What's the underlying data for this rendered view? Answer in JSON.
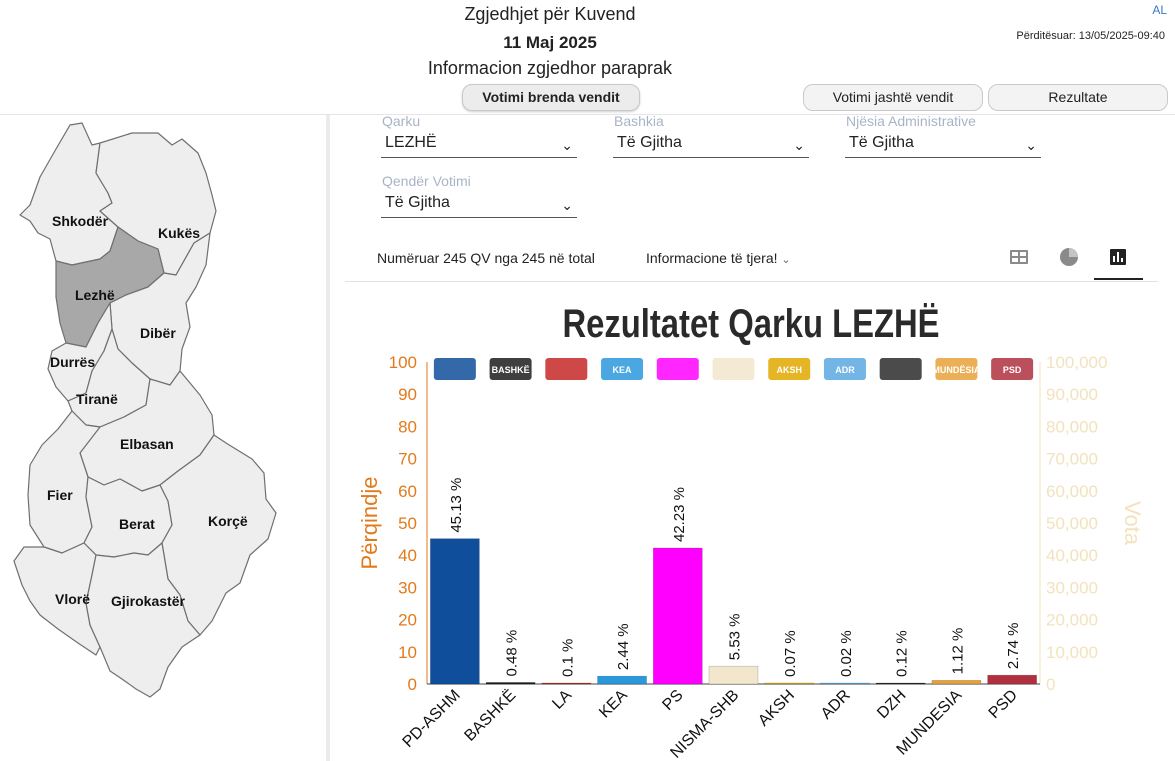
{
  "header": {
    "title": "Zgjedhjet për Kuvend",
    "date": "11 Maj 2025",
    "subtitle": "Informacion zgjedhor paraprak",
    "lang": "AL",
    "updated": "Përditësuar: 13/05/2025-09:40"
  },
  "tabs": {
    "domestic": "Votimi brenda vendit",
    "abroad": "Votimi jashtë vendit",
    "results": "Rezultate"
  },
  "map": {
    "regions": [
      "Shkodër",
      "Kukës",
      "Lezhë",
      "Dibër",
      "Durrës",
      "Tiranë",
      "Elbasan",
      "Fier",
      "Berat",
      "Korçë",
      "Vlorë",
      "Gjirokastër"
    ],
    "selected": "Lezhë",
    "colors": {
      "region": "#eeeeee",
      "selected": "#a8a8a8",
      "border": "#6f6f6f"
    }
  },
  "filters": {
    "qarku": {
      "label": "Qarku",
      "value": "LEZHË"
    },
    "bashkia": {
      "label": "Bashkia",
      "value": "Të Gjitha"
    },
    "njesia": {
      "label": "Njësia Administrative",
      "value": "Të Gjitha"
    },
    "qender": {
      "label": "Qendër Votimi",
      "value": "Të Gjitha"
    }
  },
  "info": {
    "counted": "Numëruar 245 QV nga 245 në total",
    "more": "Informacione të tjera!"
  },
  "views": {
    "icons": [
      "table-icon",
      "pie-chart-icon",
      "bar-chart-icon"
    ],
    "active": "bar-chart-icon"
  },
  "chart_data": {
    "type": "bar",
    "title": "Rezultatet Qarku LEZHË",
    "ylabel": "Përqindje",
    "y2label": "Vota",
    "ylim": [
      0,
      100
    ],
    "yticks": [
      "0",
      "10",
      "20",
      "30",
      "40",
      "50",
      "60",
      "70",
      "80",
      "90",
      "100"
    ],
    "y2ticks": [
      "0",
      "10,000",
      "20,000",
      "30,000",
      "40,000",
      "50,000",
      "60,000",
      "70,000",
      "80,000",
      "90,000",
      "100,000"
    ],
    "categories": [
      "PD-ASHM",
      "BASHKË",
      "LA",
      "KEA",
      "PS",
      "NISMA-SHB",
      "AKSH",
      "ADR",
      "DZH",
      "MUNDESIA",
      "PSD"
    ],
    "values": [
      45.13,
      0.48,
      0.1,
      2.44,
      42.23,
      5.53,
      0.07,
      0.02,
      0.12,
      1.12,
      2.74
    ],
    "labels": [
      "45.13 %",
      "0.48 %",
      "0.1 %",
      "2.44 %",
      "42.23 %",
      "5.53 %",
      "0.07 %",
      "0.02 %",
      "0.12 %",
      "1.12 %",
      "2.74 %"
    ],
    "colors": [
      "#0f4e9a",
      "#1d1d1d",
      "#c62828",
      "#2a98dc",
      "#ff00ff",
      "#f2e6cc",
      "#e0a800",
      "#5aa8e0",
      "#2b2b2b",
      "#e8a13a",
      "#b03040"
    ],
    "logo_texts": [
      "",
      "BASHKË",
      "",
      "KEA",
      "",
      "",
      "AKSH",
      "ADR",
      "",
      "MUNDËSIA",
      "PSD"
    ],
    "axis_colors": {
      "left": "#e27a1c",
      "right": "#f3e2bd"
    },
    "grid": false
  }
}
